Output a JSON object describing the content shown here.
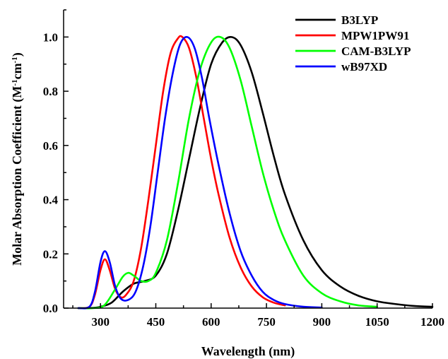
{
  "chart_data": {
    "type": "line",
    "xlabel": "Wavelength (nm)",
    "ylabel_parts": [
      "Molar Absorption Coefficient (M",
      "-1",
      "cm",
      "-1",
      ")"
    ],
    "xlim": [
      200,
      1200
    ],
    "ylim": [
      0,
      1.1
    ],
    "x_ticks": [
      300,
      450,
      600,
      750,
      900,
      1050,
      1200
    ],
    "x_tick_labels": [
      "300",
      "450",
      "600",
      "750",
      "900",
      "1050",
      "1200"
    ],
    "y_ticks": [
      0.0,
      0.2,
      0.4,
      0.6,
      0.8,
      1.0
    ],
    "y_tick_labels": [
      "0.0",
      "0.2",
      "0.4",
      "0.6",
      "0.8",
      "1.0"
    ],
    "legend_position": "top-right",
    "series": [
      {
        "name": "B3LYP",
        "color": "#000000",
        "x": [
          240,
          270,
          300,
          330,
          360,
          390,
          420,
          450,
          480,
          510,
          540,
          570,
          600,
          630,
          655,
          680,
          710,
          740,
          770,
          800,
          850,
          900,
          950,
          1000,
          1050,
          1100,
          1150,
          1200
        ],
        "y": [
          0.0,
          0.0,
          0.005,
          0.02,
          0.06,
          0.09,
          0.1,
          0.12,
          0.2,
          0.36,
          0.55,
          0.74,
          0.9,
          0.98,
          1.0,
          0.97,
          0.87,
          0.72,
          0.56,
          0.42,
          0.25,
          0.14,
          0.08,
          0.045,
          0.025,
          0.015,
          0.008,
          0.005
        ]
      },
      {
        "name": "MPW1PW91",
        "color": "#ff0000",
        "x": [
          240,
          270,
          285,
          300,
          312,
          325,
          340,
          355,
          370,
          390,
          410,
          430,
          450,
          470,
          490,
          510,
          522,
          540,
          560,
          580,
          600,
          620,
          650,
          680,
          710,
          740,
          770,
          800
        ],
        "y": [
          0.0,
          0.005,
          0.05,
          0.14,
          0.18,
          0.14,
          0.07,
          0.04,
          0.05,
          0.1,
          0.22,
          0.4,
          0.6,
          0.8,
          0.94,
          0.995,
          1.0,
          0.96,
          0.85,
          0.7,
          0.55,
          0.42,
          0.26,
          0.15,
          0.08,
          0.04,
          0.02,
          0.01
        ]
      },
      {
        "name": "CAM-B3LYP",
        "color": "#00ff00",
        "x": [
          240,
          280,
          310,
          340,
          360,
          375,
          390,
          410,
          430,
          450,
          480,
          510,
          540,
          570,
          600,
          625,
          650,
          680,
          710,
          740,
          770,
          800,
          850,
          900,
          950,
          1000,
          1050
        ],
        "y": [
          0.0,
          0.0,
          0.01,
          0.07,
          0.115,
          0.13,
          0.12,
          0.1,
          0.1,
          0.13,
          0.25,
          0.46,
          0.7,
          0.88,
          0.98,
          1.0,
          0.96,
          0.84,
          0.67,
          0.5,
          0.36,
          0.25,
          0.12,
          0.055,
          0.025,
          0.01,
          0.005
        ]
      },
      {
        "name": "wB97XD",
        "color": "#0000ff",
        "x": [
          240,
          270,
          285,
          300,
          312,
          325,
          340,
          355,
          375,
          395,
          415,
          435,
          455,
          475,
          495,
          515,
          535,
          555,
          575,
          595,
          620,
          650,
          680,
          710,
          740,
          770,
          800,
          850,
          900
        ],
        "y": [
          0.0,
          0.005,
          0.06,
          0.17,
          0.21,
          0.17,
          0.08,
          0.035,
          0.03,
          0.06,
          0.15,
          0.3,
          0.5,
          0.7,
          0.86,
          0.97,
          1.0,
          0.96,
          0.85,
          0.7,
          0.53,
          0.35,
          0.21,
          0.12,
          0.06,
          0.03,
          0.015,
          0.005,
          0.002
        ]
      }
    ]
  }
}
